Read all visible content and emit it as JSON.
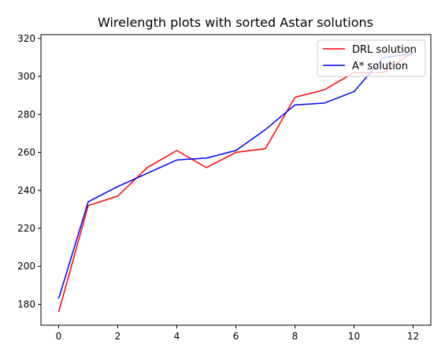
{
  "chart_data": {
    "type": "line",
    "title": "Wirelength plots with sorted Astar solutions",
    "xlabel": "",
    "ylabel": "",
    "xlim": [
      -0.6,
      12.6
    ],
    "ylim": [
      169,
      322
    ],
    "xticks": [
      0,
      2,
      4,
      6,
      8,
      10,
      12
    ],
    "yticks": [
      180,
      200,
      220,
      240,
      260,
      280,
      300,
      320
    ],
    "grid": false,
    "legend_position": "top-right",
    "series": [
      {
        "name": "DRL solution",
        "color": "#ff0000",
        "x": [
          0,
          1,
          2,
          3,
          4,
          5,
          6,
          7,
          8,
          9,
          10,
          11,
          12
        ],
        "values": [
          176,
          232,
          237,
          252,
          261,
          252,
          260,
          262,
          289,
          293,
          302,
          302,
          313
        ]
      },
      {
        "name": "A* solution",
        "color": "#0000ff",
        "x": [
          0,
          1,
          2,
          3,
          4,
          5,
          6,
          7,
          8,
          9,
          10,
          11,
          12
        ],
        "values": [
          183,
          234,
          242,
          249,
          256,
          257,
          261,
          272,
          285,
          286,
          292,
          310,
          312
        ]
      }
    ]
  }
}
